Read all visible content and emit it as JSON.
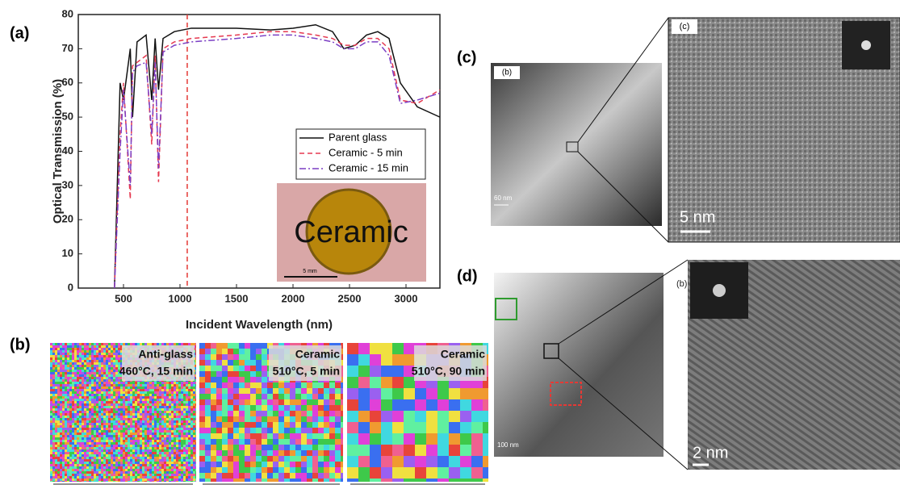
{
  "chart_data": {
    "type": "line",
    "panel_label": "(a)",
    "x_label": "Incident Wavelength (nm)",
    "y_label": "Optical Transmission (%)",
    "xlim": [
      100,
      3300
    ],
    "xticks": [
      500,
      1000,
      1500,
      2000,
      2500,
      3000
    ],
    "ylim": [
      0,
      80
    ],
    "yticks": [
      0,
      10,
      20,
      30,
      40,
      50,
      60,
      70,
      80
    ],
    "legend": "right",
    "reference_line": {
      "x": 1064,
      "color": "#e53935"
    },
    "x": [
      420,
      470,
      500,
      560,
      580,
      620,
      700,
      750,
      780,
      810,
      850,
      950,
      1100,
      1500,
      1800,
      2000,
      2200,
      2350,
      2450,
      2550,
      2650,
      2750,
      2850,
      2950,
      3100,
      3300
    ],
    "series": [
      {
        "name": "Parent glass",
        "color": "#111111",
        "style": "solid",
        "values": [
          0,
          60,
          55,
          70,
          50,
          72,
          74,
          55,
          73,
          58,
          73,
          75,
          76,
          76,
          75.5,
          76,
          77,
          75,
          70,
          71,
          74,
          75,
          73,
          60,
          53,
          50
        ]
      },
      {
        "name": "Ceramic - 5 min",
        "color": "#e53950",
        "style": "dashed",
        "values": [
          0,
          45,
          60,
          26,
          65,
          66,
          68,
          42,
          68,
          31,
          70,
          72,
          73,
          74,
          75,
          75,
          74,
          73,
          71,
          71,
          73,
          73,
          70,
          55,
          54,
          58
        ]
      },
      {
        "name": "Ceramic - 15 min",
        "color": "#7b3fc4",
        "style": "dashdot",
        "values": [
          0,
          40,
          58,
          30,
          63,
          65,
          66,
          45,
          66,
          35,
          69,
          71,
          72,
          73,
          74,
          74,
          73,
          72,
          70,
          70,
          72,
          72,
          68,
          54,
          55,
          57
        ]
      }
    ],
    "inset": {
      "text": "Ceramic",
      "scale_bar": "5 mm"
    }
  },
  "panel_b": {
    "label": "(b)",
    "maps": [
      {
        "phase": "Anti-glass",
        "condition": "460°C, 15 min"
      },
      {
        "phase": "Ceramic",
        "condition": "510°C, 5 min"
      },
      {
        "phase": "Ceramic",
        "condition": "510°C, 90 min"
      }
    ]
  },
  "panel_c": {
    "label": "(c)",
    "overview_tag": "(b)",
    "overview_scale": "60 nm",
    "zoom_tag": "(c)",
    "zoom_scale": "5 nm"
  },
  "panel_d": {
    "label": "(d)",
    "overview_scale": "100 nm",
    "zoom_tag": "(b)",
    "zoom_scale": "2 nm"
  }
}
